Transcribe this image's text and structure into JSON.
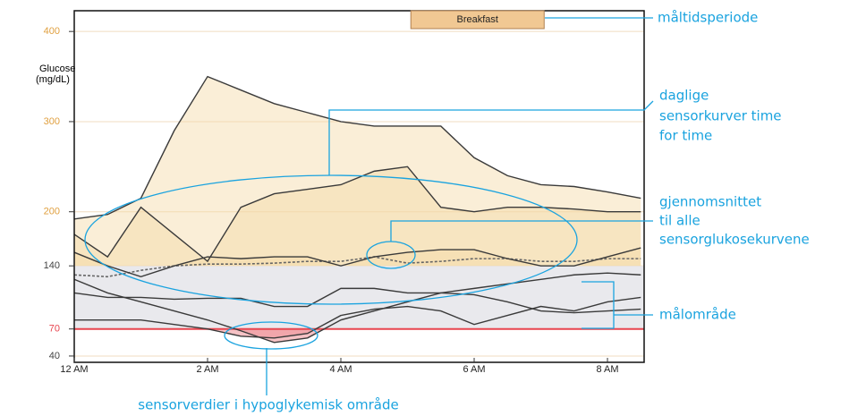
{
  "chart_data": {
    "type": "line",
    "y_label": [
      "Glucose",
      "(mg/dL)"
    ],
    "meal_period": [
      5.05,
      7.05
    ],
    "meal_label": "Breakfast",
    "meal_color": "#f1c893",
    "target_range": [
      70,
      140
    ],
    "target_color": "#e9e9ed",
    "high_fill": "#f5d9a6",
    "low_fill": "#ec8f96",
    "hypo_line": 70,
    "hypo_color": "#e8454f",
    "xlim": [
      0,
      8.55
    ],
    "ylim": [
      33,
      423
    ],
    "xticks": [
      {
        "value": 0,
        "label": "12 AM"
      },
      {
        "value": 2,
        "label": "2 AM"
      },
      {
        "value": 4,
        "label": "4 AM"
      },
      {
        "value": 6,
        "label": "6 AM"
      },
      {
        "value": 8,
        "label": "8 AM"
      }
    ],
    "yticks": [
      40,
      70,
      140,
      200,
      300,
      400
    ],
    "ytick_colors": [
      "#444444",
      "#e8454f",
      "#444444",
      "#e0a040",
      "#e0a040",
      "#e0a040"
    ],
    "grid": true,
    "grid_color": "#f0dcc0",
    "x": [
      0,
      0.5,
      1,
      1.5,
      2,
      2.5,
      3,
      3.5,
      4,
      4.5,
      5,
      5.5,
      6,
      6.5,
      7,
      7.5,
      8,
      8.5
    ],
    "series": [
      {
        "color": "#3a3a3a",
        "values": [
          192,
          197,
          215,
          290,
          350,
          335,
          320,
          310,
          300,
          295,
          295,
          295,
          260,
          240,
          230,
          228,
          222,
          215
        ]
      },
      {
        "color": "#3a3a3a",
        "values": [
          175,
          150,
          205,
          175,
          145,
          205,
          220,
          225,
          230,
          245,
          250,
          205,
          200,
          205,
          205,
          203,
          200,
          200
        ]
      },
      {
        "color": "#666666",
        "dashed": true,
        "values": [
          130,
          128,
          135,
          140,
          142,
          142,
          143,
          145,
          145,
          150,
          143,
          145,
          148,
          148,
          145,
          145,
          148,
          148
        ]
      },
      {
        "color": "#3a3a3a",
        "values": [
          155,
          140,
          128,
          140,
          150,
          148,
          150,
          150,
          140,
          150,
          155,
          158,
          158,
          148,
          140,
          140,
          150,
          160
        ]
      },
      {
        "color": "#3a3a3a",
        "values": [
          125,
          110,
          100,
          90,
          80,
          68,
          55,
          60,
          80,
          90,
          100,
          110,
          115,
          120,
          125,
          130,
          132,
          130
        ]
      },
      {
        "color": "#3a3a3a",
        "values": [
          80,
          80,
          80,
          75,
          70,
          62,
          60,
          65,
          85,
          92,
          95,
          90,
          75,
          85,
          95,
          90,
          100,
          105
        ]
      },
      {
        "color": "#3a3a3a",
        "values": [
          110,
          105,
          105,
          103,
          104,
          104,
          95,
          95,
          115,
          115,
          110,
          110,
          108,
          100,
          90,
          88,
          90,
          92
        ]
      }
    ],
    "annotations": [
      {
        "lines": [
          "måltidsperiode"
        ]
      },
      {
        "lines": [
          "daglige",
          "sensorkurver time",
          "for time"
        ]
      },
      {
        "lines": [
          "gjennomsnittet",
          "til alle",
          "sensorglukosekurvene"
        ]
      },
      {
        "lines": [
          "målområde"
        ]
      },
      {
        "lines": [
          "sensorverdier i hypoglykemisk område"
        ]
      }
    ]
  }
}
